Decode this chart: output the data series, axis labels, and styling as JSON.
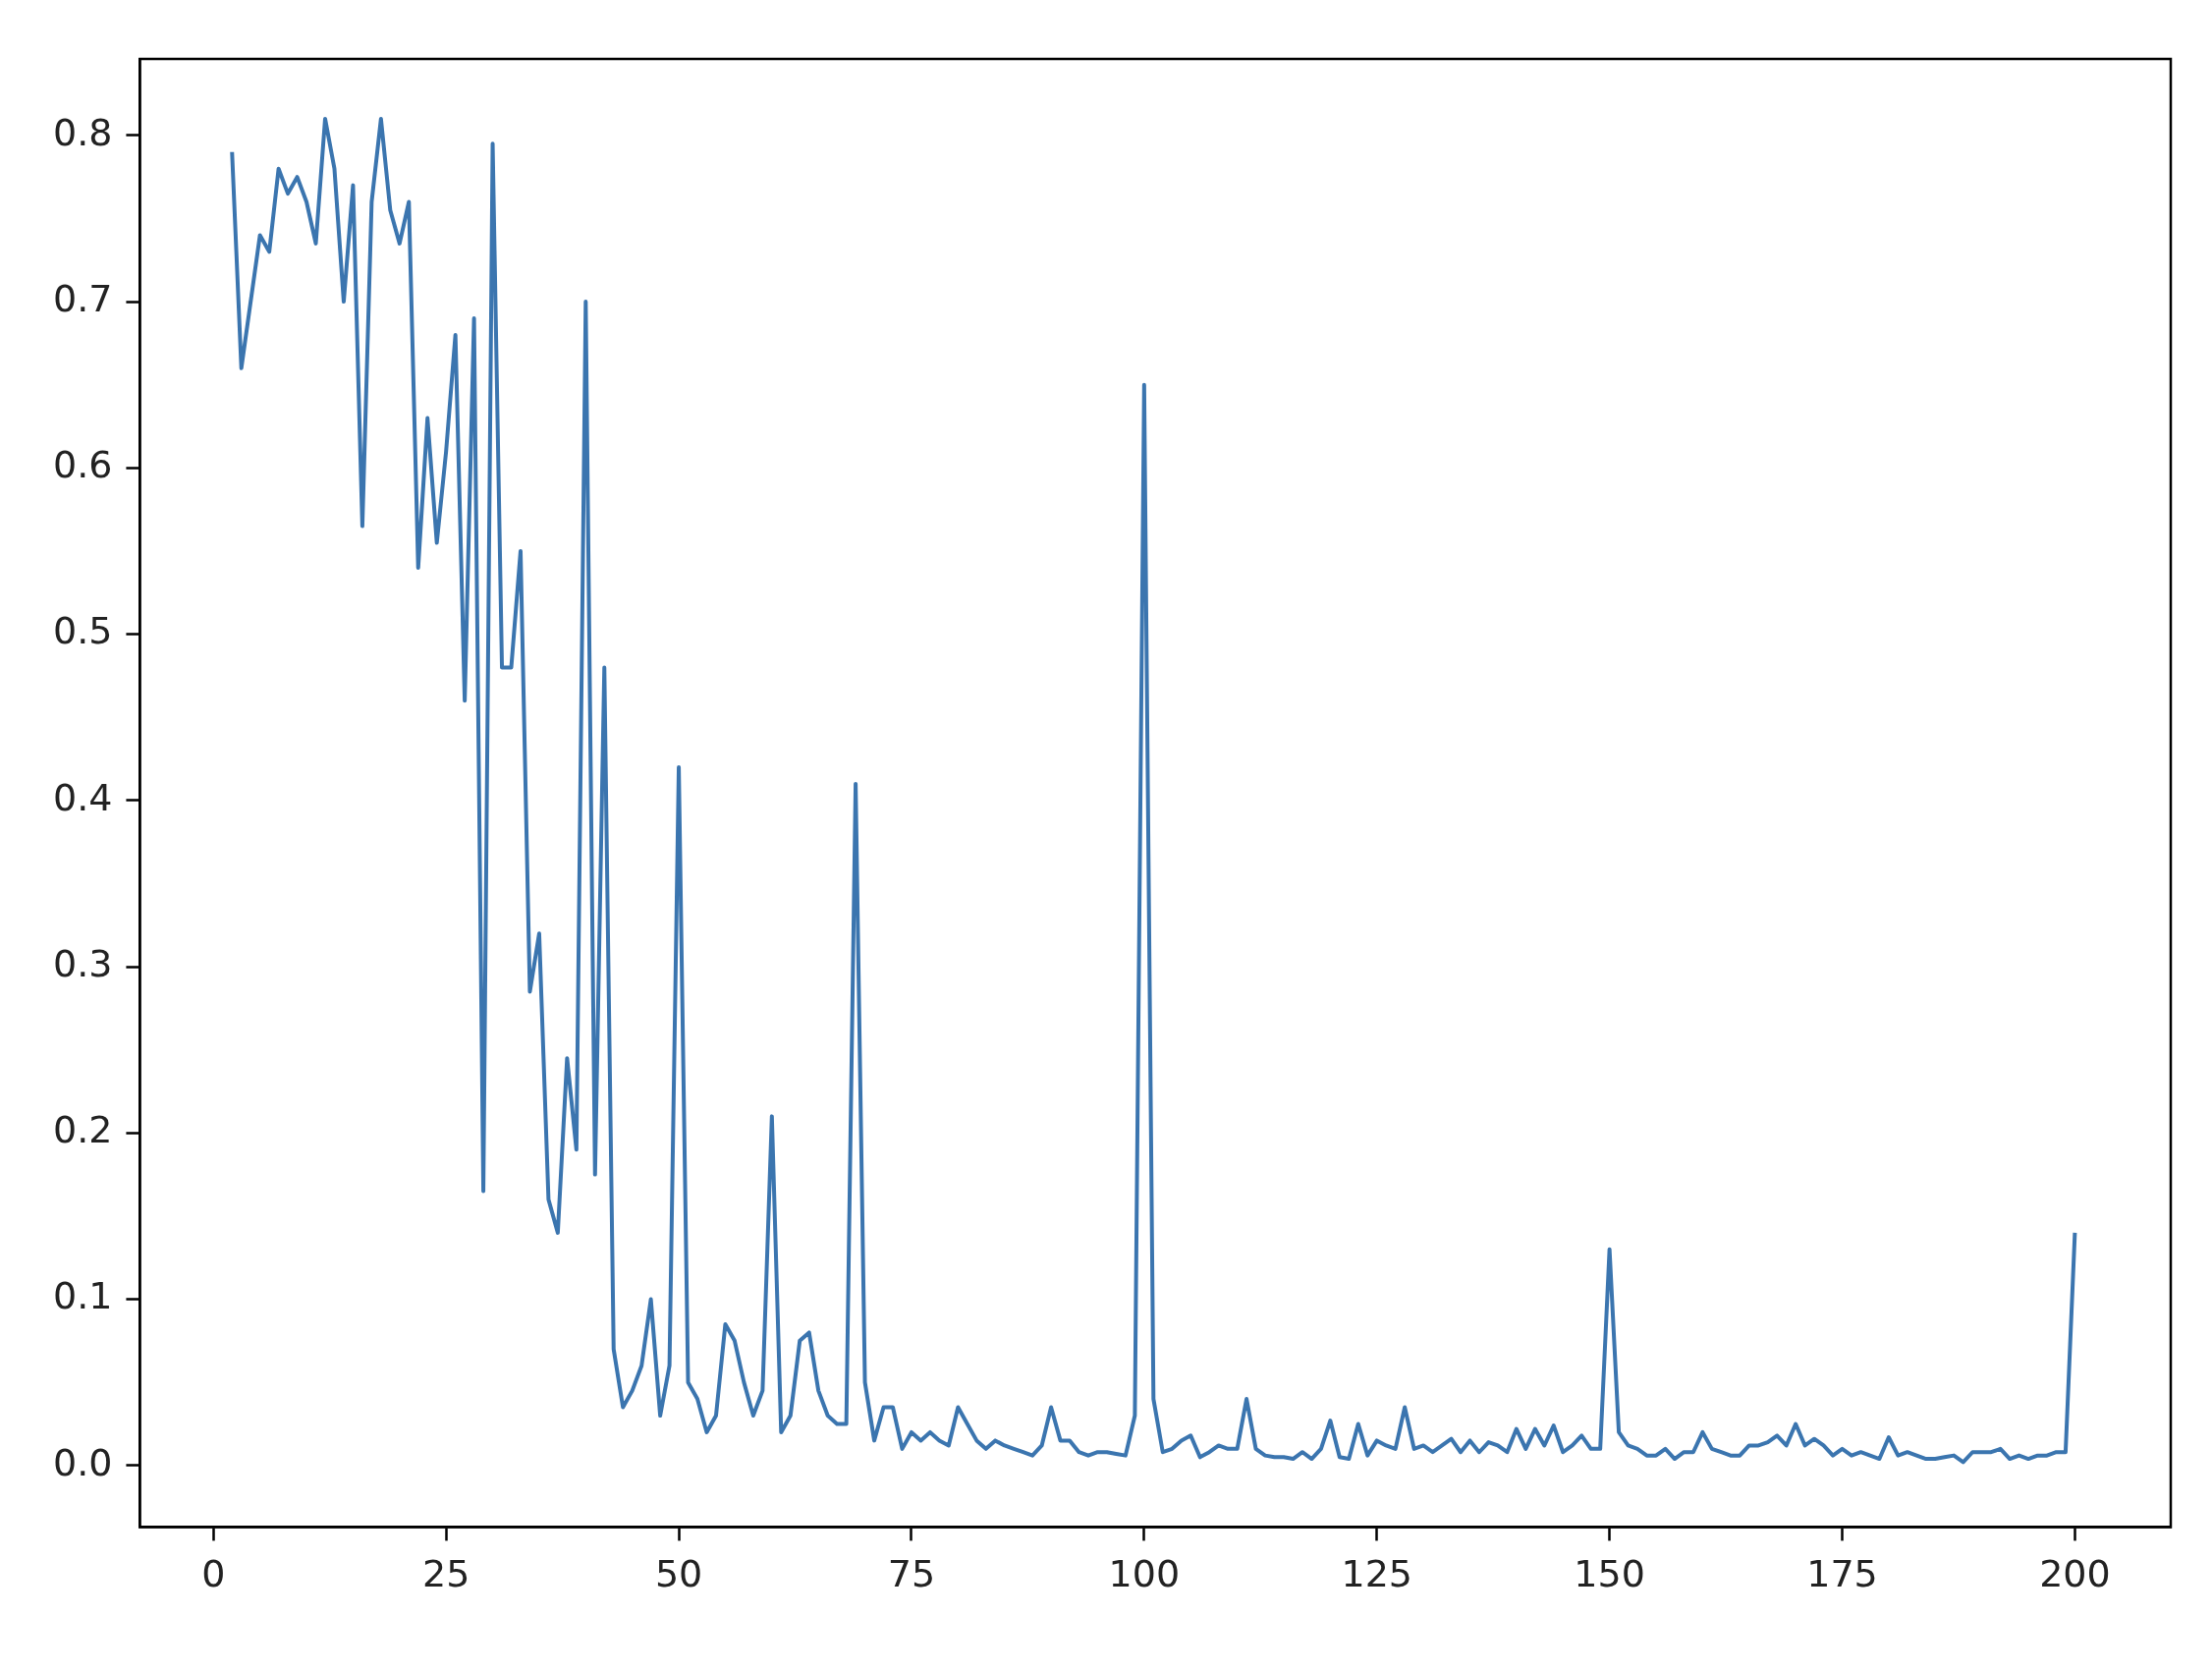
{
  "chart_data": {
    "type": "line",
    "x": [
      2,
      3,
      4,
      5,
      6,
      7,
      8,
      9,
      10,
      11,
      12,
      13,
      14,
      15,
      16,
      17,
      18,
      19,
      20,
      21,
      22,
      23,
      24,
      25,
      26,
      27,
      28,
      29,
      30,
      31,
      32,
      33,
      34,
      35,
      36,
      37,
      38,
      39,
      40,
      41,
      42,
      43,
      44,
      45,
      46,
      47,
      48,
      49,
      50,
      51,
      52,
      53,
      54,
      55,
      56,
      57,
      58,
      59,
      60,
      61,
      62,
      63,
      64,
      65,
      66,
      67,
      68,
      69,
      70,
      71,
      72,
      73,
      74,
      75,
      76,
      77,
      78,
      79,
      80,
      81,
      82,
      83,
      84,
      85,
      86,
      87,
      88,
      89,
      90,
      91,
      92,
      93,
      94,
      95,
      96,
      97,
      98,
      99,
      100,
      101,
      102,
      103,
      104,
      105,
      106,
      107,
      108,
      109,
      110,
      111,
      112,
      113,
      114,
      115,
      116,
      117,
      118,
      119,
      120,
      121,
      122,
      123,
      124,
      125,
      126,
      127,
      128,
      129,
      130,
      131,
      132,
      133,
      134,
      135,
      136,
      137,
      138,
      139,
      140,
      141,
      142,
      143,
      144,
      145,
      146,
      147,
      148,
      149,
      150,
      151,
      152,
      153,
      154,
      155,
      156,
      157,
      158,
      159,
      160,
      161,
      162,
      163,
      164,
      165,
      166,
      167,
      168,
      169,
      170,
      171,
      172,
      173,
      174,
      175,
      176,
      177,
      178,
      179,
      180,
      181,
      182,
      183,
      184,
      185,
      186,
      187,
      188,
      189,
      190,
      191,
      192,
      193,
      194,
      195,
      196,
      197,
      198,
      199,
      200
    ],
    "series": [
      {
        "color": "#3b75af",
        "values": [
          0.79,
          0.66,
          0.7,
          0.74,
          0.73,
          0.78,
          0.765,
          0.775,
          0.76,
          0.735,
          0.81,
          0.78,
          0.7,
          0.77,
          0.565,
          0.76,
          0.81,
          0.755,
          0.735,
          0.76,
          0.54,
          0.63,
          0.555,
          0.61,
          0.68,
          0.46,
          0.69,
          0.165,
          0.795,
          0.48,
          0.48,
          0.55,
          0.285,
          0.32,
          0.16,
          0.14,
          0.245,
          0.19,
          0.7,
          0.175,
          0.48,
          0.07,
          0.035,
          0.045,
          0.06,
          0.1,
          0.03,
          0.06,
          0.42,
          0.05,
          0.04,
          0.02,
          0.03,
          0.085,
          0.075,
          0.05,
          0.03,
          0.045,
          0.21,
          0.02,
          0.03,
          0.075,
          0.08,
          0.045,
          0.03,
          0.025,
          0.025,
          0.41,
          0.05,
          0.015,
          0.035,
          0.035,
          0.01,
          0.02,
          0.015,
          0.02,
          0.015,
          0.012,
          0.035,
          0.025,
          0.015,
          0.01,
          0.015,
          0.012,
          0.01,
          0.008,
          0.006,
          0.012,
          0.035,
          0.015,
          0.015,
          0.008,
          0.006,
          0.008,
          0.008,
          0.007,
          0.006,
          0.03,
          0.65,
          0.04,
          0.008,
          0.01,
          0.015,
          0.018,
          0.005,
          0.008,
          0.012,
          0.01,
          0.01,
          0.04,
          0.01,
          0.006,
          0.005,
          0.005,
          0.004,
          0.008,
          0.004,
          0.01,
          0.027,
          0.005,
          0.004,
          0.025,
          0.006,
          0.015,
          0.012,
          0.01,
          0.035,
          0.01,
          0.012,
          0.008,
          0.012,
          0.016,
          0.008,
          0.015,
          0.008,
          0.014,
          0.012,
          0.008,
          0.022,
          0.01,
          0.022,
          0.012,
          0.024,
          0.008,
          0.012,
          0.018,
          0.01,
          0.01,
          0.13,
          0.02,
          0.012,
          0.01,
          0.006,
          0.006,
          0.01,
          0.004,
          0.008,
          0.008,
          0.02,
          0.01,
          0.008,
          0.006,
          0.006,
          0.012,
          0.012,
          0.014,
          0.018,
          0.012,
          0.025,
          0.012,
          0.016,
          0.012,
          0.006,
          0.01,
          0.006,
          0.008,
          0.006,
          0.004,
          0.017,
          0.006,
          0.008,
          0.006,
          0.004,
          0.004,
          0.005,
          0.006,
          0.002,
          0.008,
          0.008,
          0.008,
          0.01,
          0.004,
          0.006,
          0.004,
          0.006,
          0.006,
          0.008,
          0.008,
          0.14
        ]
      }
    ],
    "xlim": [
      -7.9,
      210.3
    ],
    "xticks": [
      0,
      25,
      50,
      75,
      100,
      125,
      150,
      175,
      200
    ],
    "ylim": [
      -0.037,
      0.846
    ],
    "yticks": [
      {
        "value": 0,
        "label": "0.0"
      },
      0.1,
      0.2,
      0.3,
      0.4,
      0.5,
      0.6,
      0.7,
      0.8
    ],
    "marker": "none",
    "line_style": "solid",
    "grid": false,
    "legend": false
  }
}
